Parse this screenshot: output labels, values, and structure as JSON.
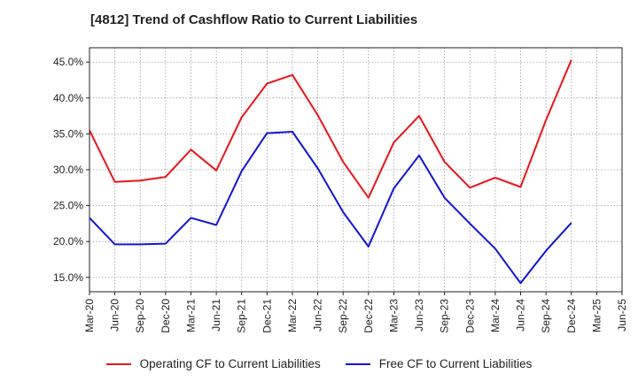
{
  "chart_data": {
    "type": "line",
    "title": "[4812]  Trend of Cashflow Ratio to Current Liabilities",
    "x": [
      "Mar-20",
      "Jun-20",
      "Sep-20",
      "Dec-20",
      "Mar-21",
      "Jun-21",
      "Sep-21",
      "Dec-21",
      "Mar-22",
      "Jun-22",
      "Sep-22",
      "Dec-22",
      "Mar-23",
      "Jun-23",
      "Sep-23",
      "Dec-23",
      "Mar-24",
      "Jun-24",
      "Sep-24",
      "Dec-24",
      "Mar-25",
      "Jun-25"
    ],
    "series": [
      {
        "name": "Operating CF to Current Liabilities",
        "color": "#e8161b",
        "values": [
          35.5,
          28.3,
          28.5,
          29.0,
          32.8,
          29.9,
          37.3,
          42.0,
          43.2,
          37.6,
          31.1,
          26.1,
          33.8,
          37.5,
          31.1,
          27.5,
          28.9,
          27.6,
          36.9,
          45.3,
          null,
          null
        ]
      },
      {
        "name": "Free CF to Current Liabilities",
        "color": "#1414d4",
        "values": [
          23.3,
          19.6,
          19.6,
          19.7,
          23.3,
          22.3,
          29.8,
          35.1,
          35.3,
          30.2,
          24.1,
          19.3,
          27.4,
          32.0,
          26.1,
          22.5,
          19.0,
          14.2,
          18.7,
          22.6,
          null,
          null
        ]
      }
    ],
    "yticks": [
      "15.0%",
      "20.0%",
      "25.0%",
      "30.0%",
      "35.0%",
      "40.0%",
      "45.0%"
    ],
    "ylim": [
      13.0,
      47.0
    ],
    "grid": true,
    "legend_position": "bottom"
  }
}
